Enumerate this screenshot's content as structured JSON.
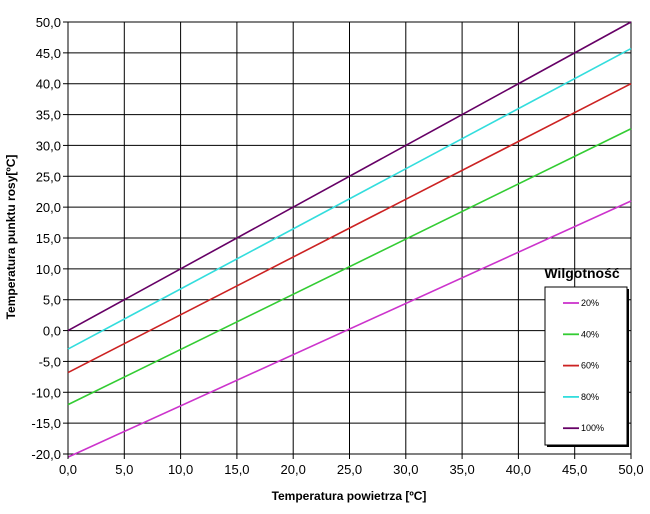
{
  "chart_data": {
    "type": "line",
    "title": "",
    "xlabel": "Temperatura powietrza [ºC]",
    "ylabel": "Temperatura punktu rosy[ºC]",
    "xlim": [
      0,
      50
    ],
    "ylim": [
      -20,
      50
    ],
    "x_ticks": [
      "0,0",
      "5,0",
      "10,0",
      "15,0",
      "20,0",
      "25,0",
      "30,0",
      "35,0",
      "40,0",
      "45,0",
      "50,0"
    ],
    "y_ticks": [
      "-20,0",
      "-15,0",
      "-10,0",
      "-5,0",
      "0,0",
      "5,0",
      "10,0",
      "15,0",
      "20,0",
      "25,0",
      "30,0",
      "35,0",
      "40,0",
      "45,0",
      "50,0"
    ],
    "grid": true,
    "legend": {
      "title": "Wilgotność",
      "position": "right"
    },
    "x": [
      0,
      50
    ],
    "series": [
      {
        "name": "20%",
        "color": "#cc33cc",
        "values": [
          -20.5,
          21.0
        ]
      },
      {
        "name": "40%",
        "color": "#33cc33",
        "values": [
          -12.0,
          32.7
        ]
      },
      {
        "name": "60%",
        "color": "#cc2222",
        "values": [
          -6.8,
          40.0
        ]
      },
      {
        "name": "80%",
        "color": "#33dddd",
        "values": [
          -3.0,
          45.7
        ]
      },
      {
        "name": "100%",
        "color": "#660066",
        "values": [
          0.0,
          50.0
        ]
      }
    ]
  }
}
